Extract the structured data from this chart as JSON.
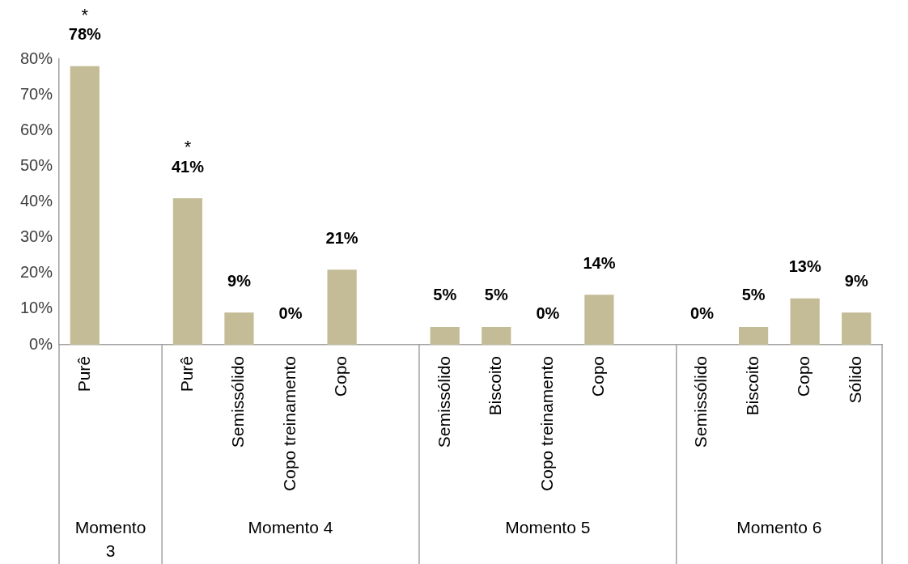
{
  "chart_data": {
    "type": "bar",
    "categories": [
      "Purê",
      null,
      "Purê",
      "Semissólido",
      "Copo treinamento",
      "Copo",
      null,
      "Semissólido",
      "Biscoito",
      "Copo treinamento",
      "Copo",
      null,
      "Semissólido",
      "Biscoito",
      "Copo",
      "Sólido"
    ],
    "values": [
      78,
      null,
      41,
      9,
      0,
      21,
      null,
      5,
      5,
      0,
      14,
      null,
      0,
      5,
      13,
      9
    ],
    "value_labels": [
      "78%",
      null,
      "41%",
      "9%",
      "0%",
      "21%",
      null,
      "5%",
      "5%",
      "0%",
      "14%",
      null,
      "0%",
      "5%",
      "13%",
      "9%"
    ],
    "color": "#c4bc96",
    "ylim": [
      0,
      80
    ],
    "yticks": [
      {
        "value": 0,
        "label": "0%"
      },
      {
        "value": 10,
        "label": "10%"
      },
      {
        "value": 20,
        "label": "20%"
      },
      {
        "value": 30,
        "label": "30%"
      },
      {
        "value": 40,
        "label": "40%"
      },
      {
        "value": 50,
        "label": "50%"
      },
      {
        "value": 60,
        "label": "60%"
      },
      {
        "value": 70,
        "label": "70%"
      },
      {
        "value": 80,
        "label": "80%"
      }
    ],
    "annotations": [
      {
        "text": "*",
        "x": "Purê",
        "y": 78
      },
      {
        "text": "*",
        "y": 41
      },
      "Momento 3",
      "Momento 4",
      "Momento 5",
      "Momento 6"
    ]
  }
}
